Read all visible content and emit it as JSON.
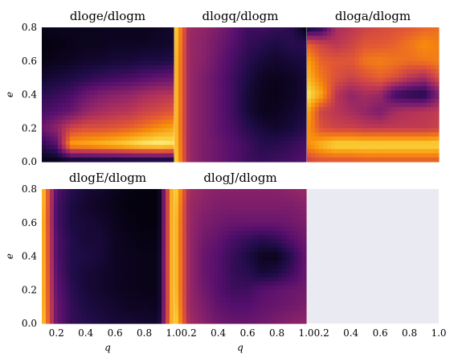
{
  "colors": {
    "empty_panel": "#eaeaf2",
    "colormap": "inferno"
  },
  "chart_data": [
    {
      "type": "heatmap",
      "title": "dloge/dlogm",
      "xlabel": "",
      "ylabel": "e",
      "xlim": [
        0.1,
        1.0
      ],
      "ylim": [
        0.0,
        0.8
      ],
      "x_ticks": [],
      "y_ticks": [
        "0.0",
        "0.2",
        "0.4",
        "0.6",
        "0.8"
      ],
      "grid": {
        "x": [
          0.1,
          0.2,
          0.3,
          0.4,
          0.5,
          0.6,
          0.7,
          0.8,
          0.9,
          1.0
        ],
        "y": [
          0.0,
          0.1,
          0.2,
          0.3,
          0.4,
          0.5,
          0.6,
          0.7,
          0.8
        ],
        "z": [
          [
            0.02,
            0.02,
            0.02,
            0.02,
            0.02,
            0.02,
            0.02,
            0.02,
            0.02,
            0.02
          ],
          [
            0.15,
            0.25,
            0.8,
            0.82,
            0.85,
            0.88,
            0.92,
            0.96,
            0.98,
            0.95
          ],
          [
            0.3,
            0.4,
            0.55,
            0.6,
            0.6,
            0.62,
            0.65,
            0.7,
            0.75,
            0.8
          ],
          [
            0.22,
            0.25,
            0.3,
            0.4,
            0.45,
            0.48,
            0.5,
            0.55,
            0.58,
            0.62
          ],
          [
            0.15,
            0.18,
            0.22,
            0.3,
            0.35,
            0.38,
            0.4,
            0.45,
            0.48,
            0.5
          ],
          [
            0.08,
            0.1,
            0.12,
            0.15,
            0.18,
            0.2,
            0.22,
            0.25,
            0.28,
            0.3
          ],
          [
            0.03,
            0.05,
            0.06,
            0.08,
            0.08,
            0.1,
            0.1,
            0.12,
            0.12,
            0.14
          ],
          [
            0.02,
            0.03,
            0.04,
            0.05,
            0.05,
            0.06,
            0.06,
            0.06,
            0.07,
            0.08
          ],
          [
            0.04,
            0.05,
            0.05,
            0.05,
            0.05,
            0.05,
            0.05,
            0.05,
            0.06,
            0.08
          ]
        ]
      }
    },
    {
      "type": "heatmap",
      "title": "dlogq/dlogm",
      "xlabel": "",
      "ylabel": "",
      "xlim": [
        0.1,
        1.0
      ],
      "ylim": [
        0.0,
        0.8
      ],
      "x_ticks": [],
      "y_ticks": [],
      "grid": {
        "x": [
          0.1,
          0.2,
          0.3,
          0.4,
          0.5,
          0.6,
          0.7,
          0.8,
          0.9,
          1.0
        ],
        "y": [
          0.0,
          0.1,
          0.2,
          0.3,
          0.4,
          0.5,
          0.6,
          0.7,
          0.8
        ],
        "z": [
          [
            0.95,
            0.42,
            0.35,
            0.3,
            0.25,
            0.2,
            0.18,
            0.2,
            0.22,
            0.25
          ],
          [
            0.92,
            0.42,
            0.35,
            0.3,
            0.25,
            0.2,
            0.15,
            0.15,
            0.18,
            0.22
          ],
          [
            0.9,
            0.42,
            0.35,
            0.28,
            0.22,
            0.15,
            0.1,
            0.08,
            0.1,
            0.15
          ],
          [
            0.9,
            0.42,
            0.35,
            0.28,
            0.2,
            0.1,
            0.05,
            0.05,
            0.08,
            0.12
          ],
          [
            0.9,
            0.42,
            0.35,
            0.28,
            0.2,
            0.1,
            0.05,
            0.04,
            0.06,
            0.1
          ],
          [
            0.9,
            0.42,
            0.35,
            0.28,
            0.2,
            0.12,
            0.06,
            0.05,
            0.06,
            0.1
          ],
          [
            0.9,
            0.42,
            0.38,
            0.3,
            0.22,
            0.15,
            0.1,
            0.08,
            0.1,
            0.12
          ],
          [
            0.92,
            0.42,
            0.38,
            0.32,
            0.25,
            0.18,
            0.15,
            0.12,
            0.15,
            0.15
          ],
          [
            0.95,
            0.42,
            0.4,
            0.35,
            0.28,
            0.2,
            0.2,
            0.18,
            0.15,
            0.02
          ]
        ]
      }
    },
    {
      "type": "heatmap",
      "title": "dloga/dlogm",
      "xlabel": "",
      "ylabel": "",
      "xlim": [
        0.1,
        1.0
      ],
      "ylim": [
        0.0,
        0.8
      ],
      "x_ticks": [],
      "y_ticks": [],
      "grid": {
        "x": [
          0.1,
          0.2,
          0.3,
          0.4,
          0.5,
          0.6,
          0.7,
          0.8,
          0.9,
          1.0
        ],
        "y": [
          0.0,
          0.1,
          0.2,
          0.3,
          0.4,
          0.5,
          0.6,
          0.7,
          0.8
        ],
        "z": [
          [
            0.55,
            0.6,
            0.6,
            0.6,
            0.62,
            0.62,
            0.62,
            0.62,
            0.62,
            0.62
          ],
          [
            0.75,
            0.85,
            0.92,
            0.92,
            0.92,
            0.92,
            0.92,
            0.92,
            0.92,
            0.92
          ],
          [
            0.78,
            0.6,
            0.55,
            0.55,
            0.52,
            0.52,
            0.52,
            0.52,
            0.52,
            0.55
          ],
          [
            0.82,
            0.55,
            0.5,
            0.45,
            0.4,
            0.35,
            0.45,
            0.48,
            0.5,
            0.52
          ],
          [
            0.95,
            0.8,
            0.5,
            0.4,
            0.45,
            0.42,
            0.2,
            0.15,
            0.12,
            0.35
          ],
          [
            0.85,
            0.7,
            0.6,
            0.55,
            0.6,
            0.65,
            0.6,
            0.5,
            0.45,
            0.6
          ],
          [
            0.8,
            0.65,
            0.62,
            0.62,
            0.7,
            0.72,
            0.7,
            0.68,
            0.7,
            0.72
          ],
          [
            0.65,
            0.55,
            0.5,
            0.55,
            0.62,
            0.62,
            0.65,
            0.7,
            0.75,
            0.72
          ],
          [
            0.05,
            0.15,
            0.45,
            0.5,
            0.55,
            0.58,
            0.6,
            0.62,
            0.65,
            0.68
          ]
        ]
      }
    },
    {
      "type": "heatmap",
      "title": "dlogE/dlogm",
      "xlabel": "q",
      "ylabel": "e",
      "xlim": [
        0.1,
        1.0
      ],
      "ylim": [
        0.0,
        0.8
      ],
      "x_ticks": [
        "0.2",
        "0.4",
        "0.6",
        "0.8",
        "1.0"
      ],
      "y_ticks": [
        "0.0",
        "0.2",
        "0.4",
        "0.6",
        "0.8"
      ],
      "grid": {
        "x": [
          0.1,
          0.2,
          0.3,
          0.4,
          0.5,
          0.6,
          0.7,
          0.8,
          0.9,
          1.0
        ],
        "y": [
          0.0,
          0.1,
          0.2,
          0.3,
          0.4,
          0.5,
          0.6,
          0.7,
          0.8
        ],
        "z": [
          [
            0.92,
            0.3,
            0.18,
            0.15,
            0.12,
            0.1,
            0.1,
            0.08,
            0.08,
            0.95
          ],
          [
            0.9,
            0.3,
            0.18,
            0.12,
            0.1,
            0.08,
            0.06,
            0.06,
            0.05,
            0.95
          ],
          [
            0.9,
            0.28,
            0.16,
            0.1,
            0.08,
            0.06,
            0.05,
            0.04,
            0.04,
            0.95
          ],
          [
            0.9,
            0.26,
            0.14,
            0.1,
            0.08,
            0.06,
            0.05,
            0.04,
            0.04,
            0.95
          ],
          [
            0.9,
            0.24,
            0.14,
            0.12,
            0.1,
            0.06,
            0.05,
            0.04,
            0.04,
            0.95
          ],
          [
            0.9,
            0.24,
            0.14,
            0.1,
            0.1,
            0.06,
            0.04,
            0.03,
            0.03,
            0.95
          ],
          [
            0.9,
            0.22,
            0.12,
            0.1,
            0.08,
            0.05,
            0.03,
            0.02,
            0.02,
            0.95
          ],
          [
            0.92,
            0.22,
            0.12,
            0.08,
            0.06,
            0.04,
            0.02,
            0.02,
            0.02,
            0.95
          ],
          [
            0.92,
            0.25,
            0.15,
            0.1,
            0.08,
            0.05,
            0.03,
            0.02,
            0.02,
            0.95
          ]
        ]
      }
    },
    {
      "type": "heatmap",
      "title": "dlogJ/dlogm",
      "xlabel": "q",
      "ylabel": "",
      "xlim": [
        0.1,
        1.0
      ],
      "ylim": [
        0.0,
        0.8
      ],
      "x_ticks": [
        "0.2",
        "0.4",
        "0.6",
        "0.8",
        "1.0"
      ],
      "y_ticks": [],
      "grid": {
        "x": [
          0.1,
          0.2,
          0.3,
          0.4,
          0.5,
          0.6,
          0.7,
          0.8,
          0.9,
          1.0
        ],
        "y": [
          0.0,
          0.1,
          0.2,
          0.3,
          0.4,
          0.5,
          0.6,
          0.7,
          0.8
        ],
        "z": [
          [
            0.95,
            0.45,
            0.38,
            0.32,
            0.3,
            0.3,
            0.32,
            0.35,
            0.38,
            0.4
          ],
          [
            0.92,
            0.42,
            0.35,
            0.28,
            0.25,
            0.25,
            0.28,
            0.3,
            0.32,
            0.35
          ],
          [
            0.9,
            0.42,
            0.32,
            0.25,
            0.2,
            0.2,
            0.25,
            0.28,
            0.3,
            0.32
          ],
          [
            0.9,
            0.42,
            0.3,
            0.25,
            0.18,
            0.15,
            0.1,
            0.12,
            0.2,
            0.3
          ],
          [
            0.9,
            0.42,
            0.3,
            0.25,
            0.18,
            0.12,
            0.05,
            0.05,
            0.15,
            0.3
          ],
          [
            0.9,
            0.42,
            0.32,
            0.28,
            0.22,
            0.18,
            0.15,
            0.18,
            0.25,
            0.32
          ],
          [
            0.9,
            0.42,
            0.35,
            0.32,
            0.3,
            0.3,
            0.3,
            0.3,
            0.32,
            0.35
          ],
          [
            0.92,
            0.42,
            0.38,
            0.35,
            0.35,
            0.35,
            0.35,
            0.35,
            0.35,
            0.38
          ],
          [
            0.95,
            0.45,
            0.4,
            0.38,
            0.38,
            0.38,
            0.38,
            0.38,
            0.4,
            0.42
          ]
        ]
      }
    },
    {
      "type": "heatmap",
      "title": "",
      "xlabel": "",
      "ylabel": "",
      "xlim": [
        0.1,
        1.0
      ],
      "ylim": [
        0.0,
        0.8
      ],
      "x_ticks": [
        "0.2",
        "0.4",
        "0.6",
        "0.8",
        "1.0"
      ],
      "y_ticks": [],
      "empty": true
    }
  ]
}
